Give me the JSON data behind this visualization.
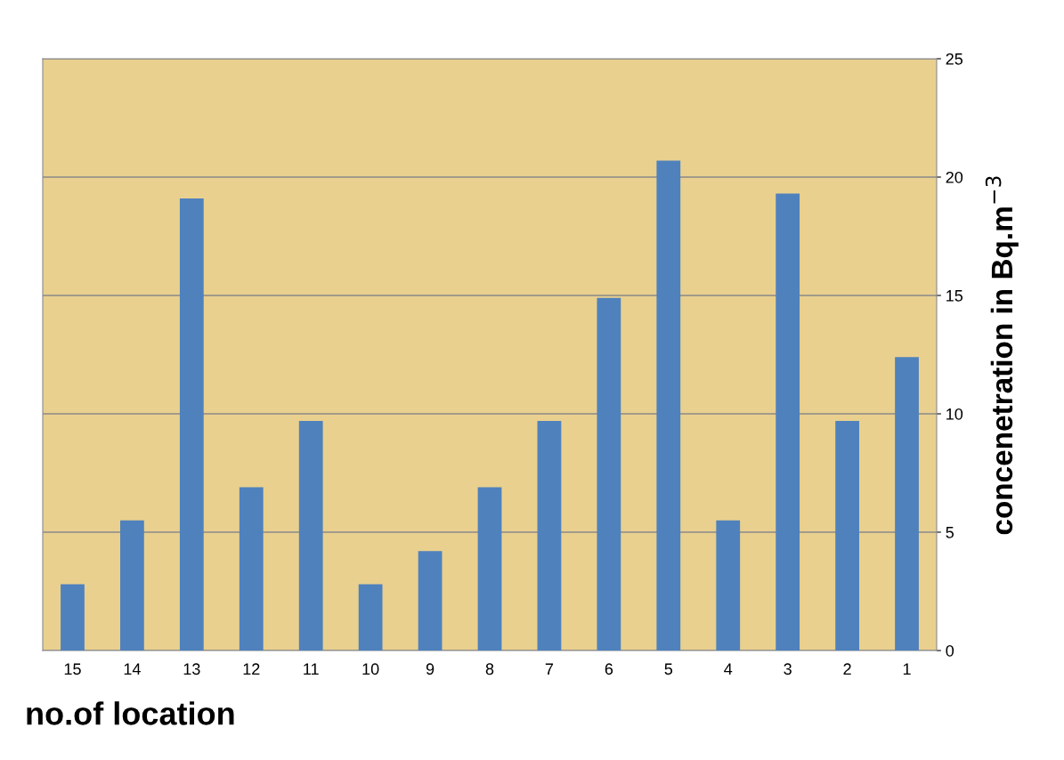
{
  "chart_data": {
    "type": "bar",
    "xlabel": "no.of location",
    "ylabel": "concenetration in Bq.m$^{−3}$",
    "categories": [
      "15",
      "14",
      "13",
      "12",
      "11",
      "10",
      "9",
      "8",
      "7",
      "6",
      "5",
      "4",
      "3",
      "2",
      "1"
    ],
    "values": [
      2.8,
      5.5,
      19.1,
      6.9,
      9.7,
      2.8,
      4.2,
      6.9,
      9.7,
      14.9,
      20.7,
      5.5,
      19.3,
      9.7,
      12.4
    ],
    "color": "#4f81bd",
    "ylim": [
      0,
      25
    ],
    "yticks": [
      0,
      5,
      10,
      15,
      20,
      25
    ],
    "grid": "y",
    "legend": false
  }
}
